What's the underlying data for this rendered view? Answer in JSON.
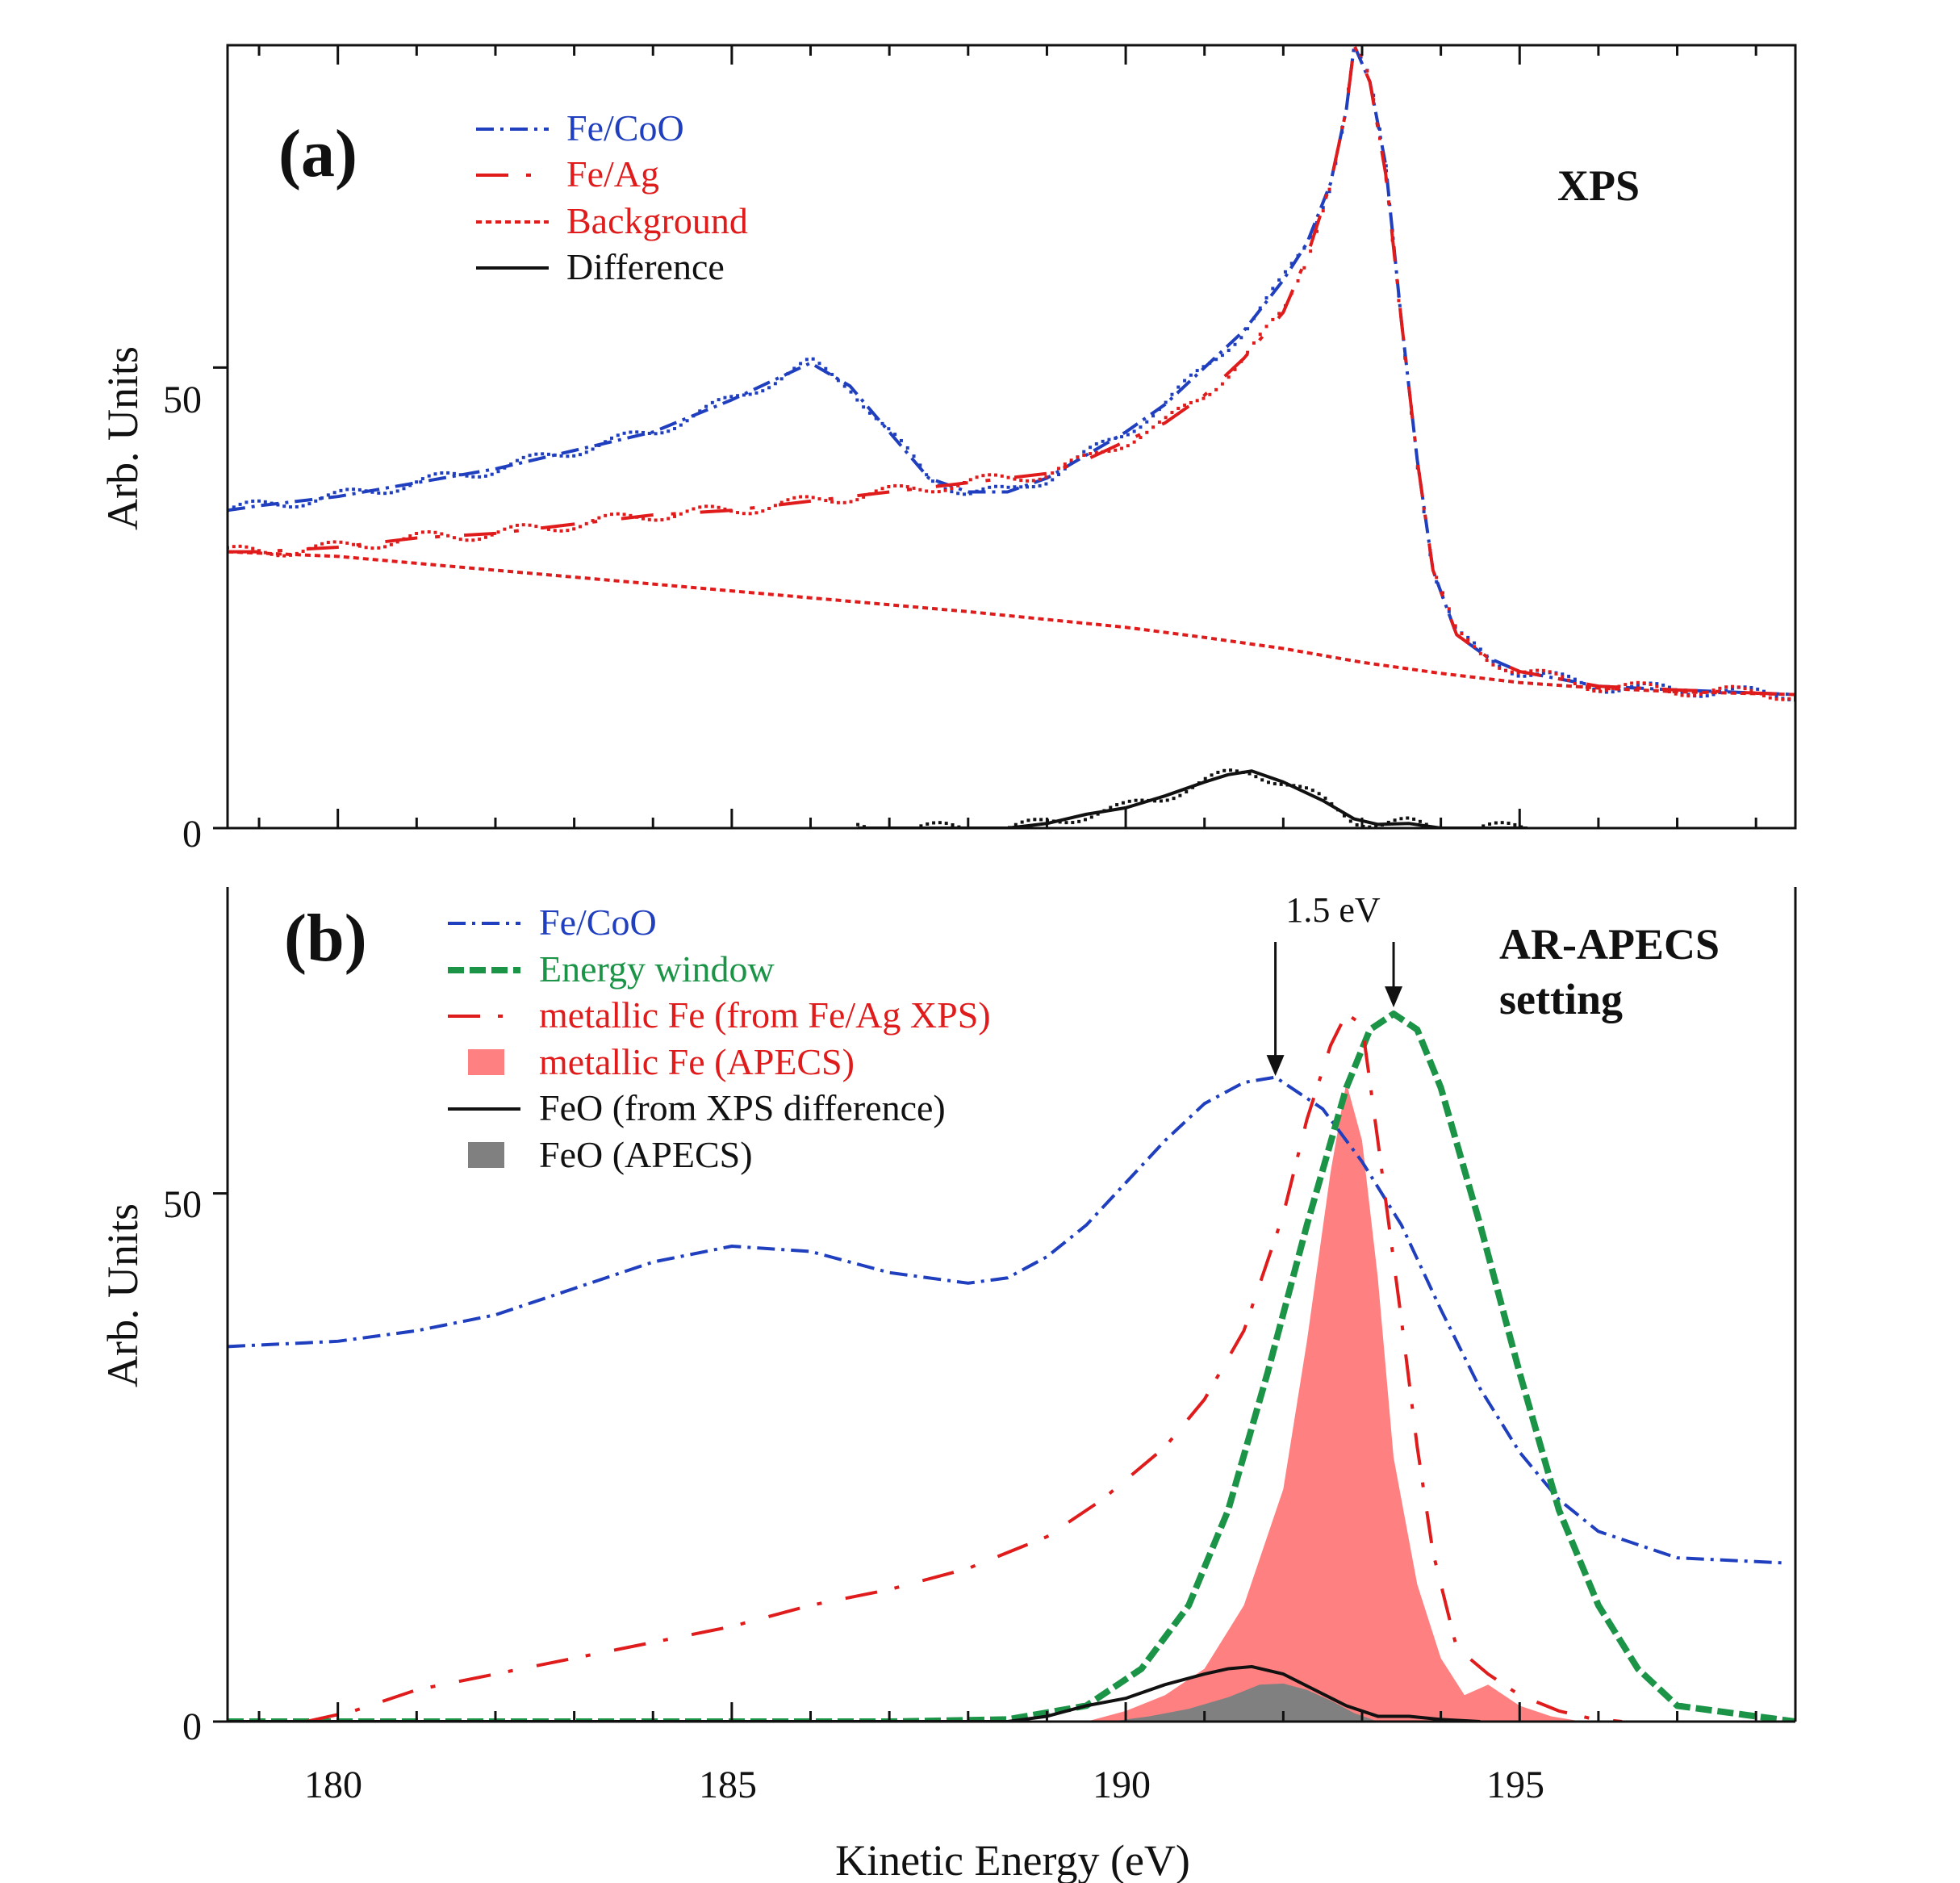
{
  "figure": {
    "xlabel": "Kinetic Energy (eV)",
    "colors": {
      "fecoo": "#1f3fbf",
      "feag": "#e01b1b",
      "background": "#e01b1b",
      "difference": "#111111",
      "energy_window": "#1b9447",
      "metallic_fill": "#ff8080",
      "feo_fill": "#808080",
      "axis": "#111111"
    }
  },
  "chart_data": [
    {
      "type": "line",
      "panel_label": "(a)",
      "corner_title": "XPS",
      "ylabel": "Arb. Units",
      "xlabel": "Kinetic Energy (eV)",
      "xlim": [
        178.6,
        198.5
      ],
      "ylim": [
        0,
        85
      ],
      "yticks": [
        0,
        50
      ],
      "ytick_labels": [
        "0",
        "50"
      ],
      "legend_position": "top-left",
      "series": [
        {
          "name": "Fe/CoO",
          "style": "dash-dot",
          "color_key": "fecoo",
          "markers": "dots",
          "x": [
            178.6,
            179,
            180,
            181,
            182,
            183,
            184,
            185,
            185.5,
            186,
            186.5,
            187,
            187.5,
            188,
            188.5,
            189,
            189.5,
            190,
            190.5,
            191,
            191.5,
            192,
            192.3,
            192.6,
            192.8,
            192.9,
            193.1,
            193.3,
            193.5,
            193.7,
            193.9,
            194.2,
            194.6,
            195,
            195.5,
            196,
            197,
            198.5
          ],
          "y": [
            34.5,
            35,
            36,
            37.5,
            39,
            41,
            43,
            46.5,
            48.5,
            50.5,
            48,
            43,
            38,
            36.5,
            36.5,
            38,
            40.5,
            43,
            46,
            50,
            54,
            59.5,
            63.5,
            70,
            78,
            85,
            81,
            72,
            55,
            40,
            28,
            21,
            18.5,
            17,
            16.2,
            15.4,
            15,
            14.5
          ]
        },
        {
          "name": "Fe/Ag",
          "style": "long-dash",
          "color_key": "feag",
          "markers": "dots",
          "x": [
            178.6,
            179,
            180,
            181,
            182,
            183,
            184,
            185,
            186,
            187,
            187.5,
            188,
            188.5,
            189,
            189.5,
            190,
            190.5,
            191,
            191.5,
            192,
            192.3,
            192.6,
            192.8,
            192.9,
            193.1,
            193.3,
            193.5,
            193.7,
            193.9,
            194.2,
            194.6,
            195,
            195.5,
            196,
            197,
            198.5
          ],
          "y": [
            30,
            30,
            30.5,
            31.5,
            32,
            33,
            34,
            34.5,
            35.5,
            36.5,
            37,
            37.5,
            38,
            38.5,
            40,
            42,
            44,
            47,
            51,
            56,
            62,
            70,
            78,
            85,
            81,
            71,
            55,
            40,
            28,
            21,
            18.5,
            17,
            16.2,
            15.4,
            15,
            14.5
          ]
        },
        {
          "name": "Background",
          "style": "dotted",
          "color_key": "background",
          "x": [
            178.6,
            180,
            182,
            184,
            186,
            188,
            190,
            191,
            192,
            193,
            194,
            195,
            196,
            197,
            198.5
          ],
          "y": [
            30,
            29.5,
            28,
            26.5,
            25,
            23.5,
            21.8,
            20.7,
            19.5,
            18,
            16.8,
            15.8,
            15.2,
            14.8,
            14.5
          ]
        },
        {
          "name": "Difference",
          "style": "solid",
          "color_key": "difference",
          "markers": "dots",
          "x": [
            186.6,
            187.5,
            188.5,
            189,
            189.5,
            190,
            190.5,
            191,
            191.3,
            191.6,
            192,
            192.5,
            192.9,
            193.2,
            193.6,
            194,
            195.1
          ],
          "y": [
            0,
            0,
            0,
            0.5,
            1.5,
            2.2,
            3.5,
            5,
            5.8,
            6.2,
            5,
            3,
            1,
            0.4,
            0.5,
            0,
            0
          ]
        }
      ]
    },
    {
      "type": "line",
      "panel_label": "(b)",
      "corner_title_lines": [
        "AR-APECS",
        "setting"
      ],
      "ylabel": "Arb. Units",
      "xlabel": "Kinetic Energy (eV)",
      "xlim": [
        178.6,
        198.5
      ],
      "ylim": [
        0,
        79
      ],
      "xticks": [
        180,
        185,
        190,
        195
      ],
      "xtick_labels": [
        "180",
        "185",
        "190",
        "195"
      ],
      "yticks": [
        0,
        50
      ],
      "ytick_labels": [
        "0",
        "50"
      ],
      "legend_position": "top-left",
      "annotations": [
        {
          "text": "1.5 eV",
          "arrows_at_x": [
            191.9,
            193.4
          ],
          "arrow_tip_y": [
            60.5,
            67
          ]
        }
      ],
      "series": [
        {
          "name": "Fe/CoO",
          "style": "dash-dot",
          "color_key": "fecoo",
          "x": [
            178.6,
            180,
            181,
            182,
            183,
            184,
            185,
            186,
            187,
            188,
            188.5,
            189,
            189.5,
            190,
            190.5,
            191,
            191.5,
            191.9,
            192.5,
            193,
            193.5,
            194,
            194.5,
            195,
            195.5,
            196,
            197,
            198.4
          ],
          "y": [
            35.5,
            36,
            37,
            38.5,
            41,
            43.5,
            45,
            44.5,
            42.5,
            41.5,
            42,
            44,
            47,
            51,
            55,
            58.5,
            60.5,
            61,
            58,
            53,
            47,
            39,
            31.5,
            25.5,
            21,
            18,
            15.5,
            15
          ]
        },
        {
          "name": "Energy window",
          "style": "dashed",
          "color_key": "energy_window",
          "x": [
            178.6,
            187,
            188.5,
            189.5,
            190.2,
            190.8,
            191.3,
            191.8,
            192.3,
            192.8,
            193.1,
            193.4,
            193.7,
            194,
            194.5,
            195,
            195.5,
            196,
            196.5,
            197,
            198.5
          ],
          "y": [
            0,
            0,
            0.2,
            1.5,
            5,
            11,
            20,
            33,
            47,
            60,
            65.5,
            67,
            65.5,
            60,
            47,
            33,
            20,
            11,
            5,
            1.5,
            0
          ]
        },
        {
          "name": "metallic Fe (from Fe/Ag XPS)",
          "style": "long-dash",
          "color_key": "feag",
          "x": [
            179.6,
            180.2,
            181,
            182,
            183,
            184,
            185,
            186,
            187,
            188,
            189,
            189.7,
            190.5,
            191,
            191.5,
            192,
            192.3,
            192.6,
            192.8,
            193,
            193.2,
            193.5,
            193.7,
            193.9,
            194.2,
            194.6,
            195,
            195.5,
            195.9,
            196.3
          ],
          "y": [
            0,
            1,
            3,
            4.5,
            6,
            7.5,
            9,
            11,
            12.5,
            14.5,
            17.5,
            21,
            26,
            30.5,
            37,
            48,
            57,
            64,
            67,
            66,
            55,
            38,
            26,
            16,
            7,
            4.5,
            2.5,
            1,
            0.3,
            0
          ]
        },
        {
          "name": "metallic Fe (APECS)",
          "style": "fill",
          "color_key": "metallic_fill",
          "x": [
            189.5,
            190,
            190.5,
            191,
            191.5,
            192,
            192.3,
            192.6,
            192.8,
            193,
            193.2,
            193.4,
            193.7,
            194,
            194.3,
            194.6,
            195,
            195.4,
            195.8
          ],
          "y": [
            0,
            1,
            2.5,
            5,
            11,
            22,
            36,
            52,
            60.5,
            55,
            42,
            25,
            13,
            6,
            2.5,
            3.5,
            1.5,
            0.5,
            0
          ]
        },
        {
          "name": "FeO (from XPS difference)",
          "style": "solid",
          "color_key": "difference",
          "x": [
            178.6,
            188.5,
            189,
            189.5,
            190,
            190.5,
            191,
            191.3,
            191.6,
            192,
            192.4,
            192.8,
            193.2,
            193.6,
            194,
            194.5
          ],
          "y": [
            0,
            0,
            0.5,
            1.5,
            2.2,
            3.5,
            4.5,
            5,
            5.2,
            4.5,
            3,
            1.5,
            0.5,
            0.5,
            0.2,
            0
          ]
        },
        {
          "name": "FeO (APECS)",
          "style": "fill",
          "color_key": "feo_fill",
          "x": [
            189.8,
            190.3,
            190.8,
            191.3,
            191.7,
            192,
            192.3,
            192.6,
            192.9,
            193.2
          ],
          "y": [
            0,
            0.5,
            1.2,
            2.3,
            3.5,
            3.6,
            3,
            2,
            0.8,
            0
          ]
        }
      ]
    }
  ]
}
